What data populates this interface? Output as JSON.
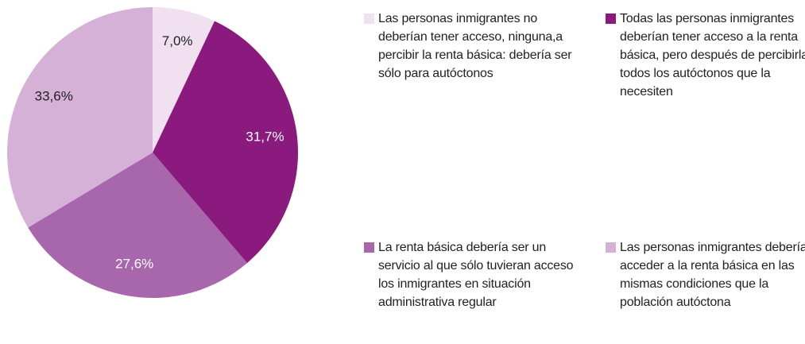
{
  "chart_data": {
    "type": "pie",
    "categories": [
      "Las personas inmigrantes no deberían tener acceso, ninguna,a percibir la renta básica: debería ser sólo para autóctonos",
      "Todas las personas inmigrantes deberían tener acceso a la renta básica, pero después de percibirla todos los autóctonos que la necesiten",
      "La renta básica debería ser un servicio al que sólo tuvieran acceso los inmigrantes en situación administrativa regular",
      "Las personas inmigrantes deberían acceder a la renta básica en las mismas condiciones que la población autóctona"
    ],
    "values": [
      7.0,
      31.7,
      27.6,
      33.6
    ],
    "value_labels": [
      "7,0%",
      "31,7%",
      "27,6%",
      "33,6%"
    ],
    "colors": [
      "#f1e0f0",
      "#8a1a7d",
      "#a866ad",
      "#d5b0d7"
    ]
  }
}
